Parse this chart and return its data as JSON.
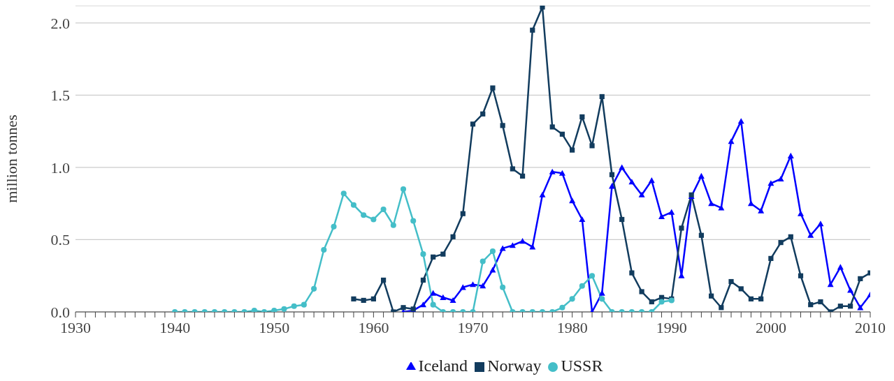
{
  "chart_data": {
    "type": "line",
    "ylabel": "million tonnes",
    "xlim": [
      1930,
      2010
    ],
    "xticks": [
      1930,
      {
        "value": 1931,
        "label": null
      },
      {
        "value": 1932,
        "label": null
      },
      {
        "value": 1933,
        "label": null
      },
      {
        "value": 1934,
        "label": null
      },
      {
        "value": 1935,
        "label": null
      },
      {
        "value": 1936,
        "label": null
      },
      {
        "value": 1937,
        "label": null
      },
      {
        "value": 1938,
        "label": null
      },
      {
        "value": 1939,
        "label": null
      },
      1940,
      {
        "value": 1941,
        "label": null
      },
      {
        "value": 1942,
        "label": null
      },
      {
        "value": 1943,
        "label": null
      },
      {
        "value": 1944,
        "label": null
      },
      {
        "value": 1945,
        "label": null
      },
      {
        "value": 1946,
        "label": null
      },
      {
        "value": 1947,
        "label": null
      },
      {
        "value": 1948,
        "label": null
      },
      {
        "value": 1949,
        "label": null
      },
      1950,
      {
        "value": 1951,
        "label": null
      },
      {
        "value": 1952,
        "label": null
      },
      {
        "value": 1953,
        "label": null
      },
      {
        "value": 1954,
        "label": null
      },
      {
        "value": 1955,
        "label": null
      },
      {
        "value": 1956,
        "label": null
      },
      {
        "value": 1957,
        "label": null
      },
      {
        "value": 1958,
        "label": null
      },
      {
        "value": 1959,
        "label": null
      },
      1960,
      {
        "value": 1961,
        "label": null
      },
      {
        "value": 1962,
        "label": null
      },
      {
        "value": 1963,
        "label": null
      },
      {
        "value": 1964,
        "label": null
      },
      {
        "value": 1965,
        "label": null
      },
      {
        "value": 1966,
        "label": null
      },
      {
        "value": 1967,
        "label": null
      },
      {
        "value": 1968,
        "label": null
      },
      {
        "value": 1969,
        "label": null
      },
      1970,
      {
        "value": 1971,
        "label": null
      },
      {
        "value": 1972,
        "label": null
      },
      {
        "value": 1973,
        "label": null
      },
      {
        "value": 1974,
        "label": null
      },
      {
        "value": 1975,
        "label": null
      },
      {
        "value": 1976,
        "label": null
      },
      {
        "value": 1977,
        "label": null
      },
      {
        "value": 1978,
        "label": null
      },
      {
        "value": 1979,
        "label": null
      },
      1980,
      {
        "value": 1981,
        "label": null
      },
      {
        "value": 1982,
        "label": null
      },
      {
        "value": 1983,
        "label": null
      },
      {
        "value": 1984,
        "label": null
      },
      {
        "value": 1985,
        "label": null
      },
      {
        "value": 1986,
        "label": null
      },
      {
        "value": 1987,
        "label": null
      },
      {
        "value": 1988,
        "label": null
      },
      {
        "value": 1989,
        "label": null
      },
      1990,
      {
        "value": 1991,
        "label": null
      },
      {
        "value": 1992,
        "label": null
      },
      {
        "value": 1993,
        "label": null
      },
      {
        "value": 1994,
        "label": null
      },
      {
        "value": 1995,
        "label": null
      },
      {
        "value": 1996,
        "label": null
      },
      {
        "value": 1997,
        "label": null
      },
      {
        "value": 1998,
        "label": null
      },
      {
        "value": 1999,
        "label": null
      },
      2000,
      {
        "value": 2001,
        "label": null
      },
      {
        "value": 2002,
        "label": null
      },
      {
        "value": 2003,
        "label": null
      },
      {
        "value": 2004,
        "label": null
      },
      {
        "value": 2005,
        "label": null
      },
      {
        "value": 2006,
        "label": null
      },
      {
        "value": 2007,
        "label": null
      },
      {
        "value": 2008,
        "label": null
      },
      {
        "value": 2009,
        "label": null
      },
      2010
    ],
    "ylim": [
      0,
      2.12
    ],
    "yticks": [
      {
        "value": 0,
        "label": "0.0"
      },
      {
        "value": 0.5,
        "label": "0.5"
      },
      {
        "value": 1,
        "label": "1.0"
      },
      {
        "value": 1.5,
        "label": "1.5"
      },
      {
        "value": 2,
        "label": "2.0"
      }
    ],
    "grid": "y",
    "legend": "bottom",
    "line_style": "solid",
    "series": [
      {
        "name": "Iceland",
        "color": "#0000ff",
        "marker": "triangle",
        "x": [
          1963,
          1964,
          1965,
          1966,
          1967,
          1968,
          1969,
          1970,
          1971,
          1972,
          1973,
          1974,
          1975,
          1976,
          1977,
          1978,
          1979,
          1980,
          1981,
          1982,
          1983,
          1984,
          1985,
          1986,
          1987,
          1988,
          1989,
          1990,
          1991,
          1992,
          1993,
          1994,
          1995,
          1996,
          1997,
          1998,
          1999,
          2000,
          2001,
          2002,
          2003,
          2004,
          2005,
          2006,
          2007,
          2008,
          2009,
          2010
        ],
        "values": [
          0.0,
          0.01,
          0.05,
          0.13,
          0.1,
          0.08,
          0.17,
          0.19,
          0.18,
          0.29,
          0.44,
          0.46,
          0.49,
          0.45,
          0.81,
          0.97,
          0.96,
          0.77,
          0.64,
          0.0,
          0.13,
          0.87,
          1.0,
          0.9,
          0.81,
          0.91,
          0.66,
          0.69,
          0.25,
          0.8,
          0.94,
          0.75,
          0.72,
          1.18,
          1.32,
          0.75,
          0.7,
          0.89,
          0.92,
          1.08,
          0.68,
          0.53,
          0.61,
          0.19,
          0.31,
          0.15,
          0.03,
          0.12
        ]
      },
      {
        "name": "Norway",
        "color": "#123c5e",
        "marker": "square",
        "x": [
          1958,
          1959,
          1960,
          1961,
          1962,
          1963,
          1964,
          1965,
          1966,
          1967,
          1968,
          1969,
          1970,
          1971,
          1972,
          1973,
          1974,
          1975,
          1976,
          1977,
          1978,
          1979,
          1980,
          1981,
          1982,
          1983,
          1984,
          1985,
          1986,
          1987,
          1988,
          1989,
          1990,
          1991,
          1992,
          1993,
          1994,
          1995,
          1996,
          1997,
          1998,
          1999,
          2000,
          2001,
          2002,
          2003,
          2004,
          2005,
          2006,
          2007,
          2008,
          2009,
          2010
        ],
        "values": [
          0.09,
          0.08,
          0.09,
          0.22,
          0.0,
          0.03,
          0.02,
          0.22,
          0.38,
          0.4,
          0.52,
          0.68,
          1.3,
          1.37,
          1.55,
          1.29,
          0.99,
          0.94,
          1.95,
          2.11,
          1.28,
          1.23,
          1.12,
          1.35,
          1.15,
          1.49,
          0.95,
          0.64,
          0.27,
          0.14,
          0.07,
          0.1,
          0.09,
          0.58,
          0.81,
          0.53,
          0.11,
          0.03,
          0.21,
          0.16,
          0.09,
          0.09,
          0.37,
          0.48,
          0.52,
          0.25,
          0.05,
          0.07,
          0.0,
          0.04,
          0.04,
          0.23,
          0.27
        ]
      },
      {
        "name": "USSR",
        "color": "#44bec8",
        "marker": "circle",
        "x": [
          1940,
          1941,
          1942,
          1943,
          1944,
          1945,
          1946,
          1947,
          1948,
          1949,
          1950,
          1951,
          1952,
          1953,
          1954,
          1955,
          1956,
          1957,
          1958,
          1959,
          1960,
          1961,
          1962,
          1963,
          1964,
          1965,
          1966,
          1967,
          1968,
          1969,
          1970,
          1971,
          1972,
          1973,
          1974,
          1975,
          1976,
          1977,
          1978,
          1979,
          1980,
          1981,
          1982,
          1983,
          1984,
          1985,
          1986,
          1987,
          1988,
          1989,
          1990
        ],
        "values": [
          0,
          0,
          0,
          0,
          0,
          0,
          0,
          0,
          0.01,
          0,
          0.01,
          0.02,
          0.04,
          0.05,
          0.16,
          0.43,
          0.59,
          0.82,
          0.74,
          0.67,
          0.64,
          0.71,
          0.6,
          0.85,
          0.63,
          0.4,
          0.05,
          0,
          0,
          0,
          0,
          0.35,
          0.42,
          0.17,
          0,
          0,
          0,
          0,
          0,
          0.03,
          0.09,
          0.18,
          0.25,
          0.09,
          0,
          0,
          0,
          0,
          0,
          0.07,
          0.08
        ]
      }
    ]
  }
}
